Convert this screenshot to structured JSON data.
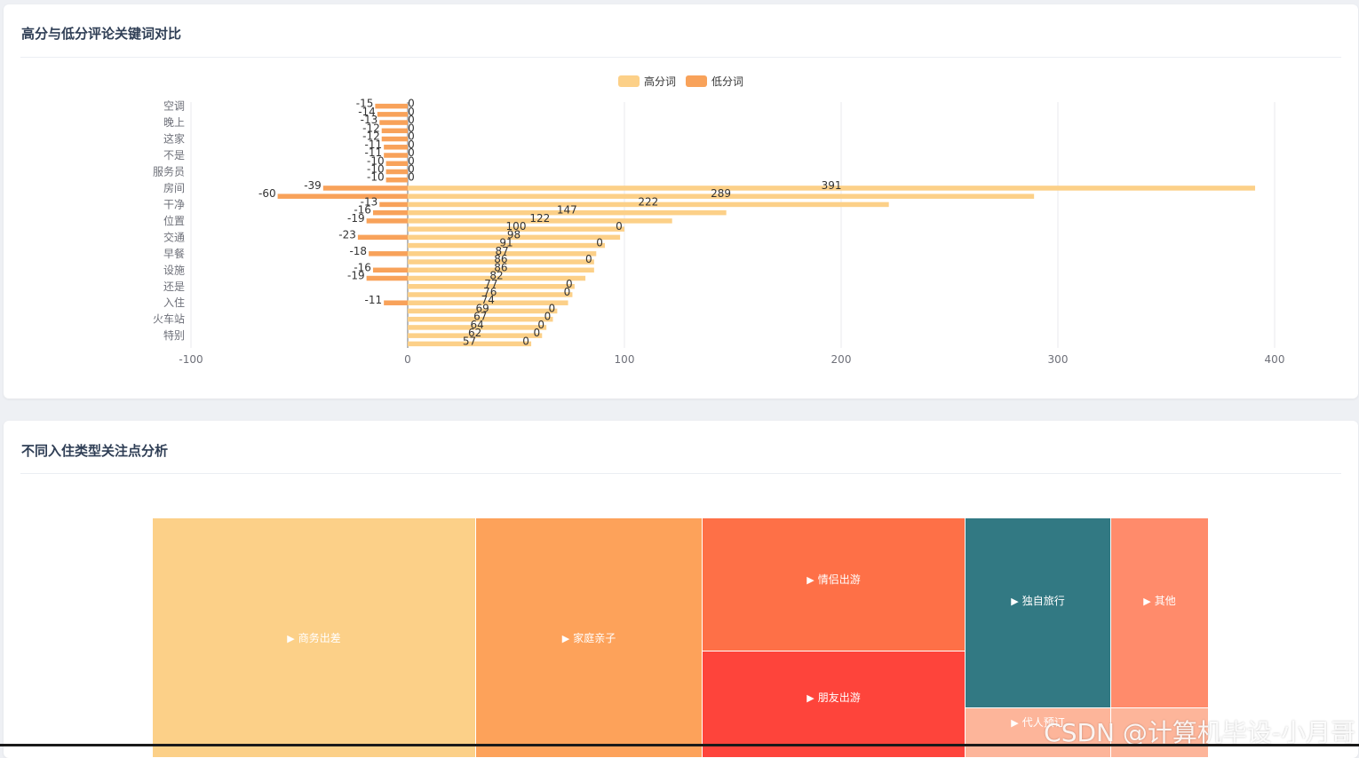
{
  "card1": {
    "title": "高分与低分评论关键词对比"
  },
  "card2": {
    "title": "不同入住类型关注点分析"
  },
  "chart_data": [
    {
      "type": "bar",
      "orientation": "horizontal",
      "title": "高分与低分评论关键词对比",
      "legend": [
        {
          "name": "高分词",
          "color": "#fcd088"
        },
        {
          "name": "低分词",
          "color": "#f8a25a"
        }
      ],
      "legend_position": "top-center",
      "xlim": [
        -100,
        400
      ],
      "xticks": [
        "-100",
        "0",
        "100",
        "200",
        "300",
        "400"
      ],
      "visible_category_labels": [
        "空调",
        "晚上",
        "这家",
        "不是",
        "服务员",
        "房间",
        "干净",
        "位置",
        "交通",
        "早餐",
        "设施",
        "还是",
        "入住",
        "火车站",
        "特别"
      ],
      "categories": [
        "空调",
        "-",
        "晚上",
        "-",
        "这家",
        "-",
        "不是",
        "-",
        "服务员",
        "-",
        "房间",
        "-",
        "干净",
        "-",
        "位置",
        "-",
        "交通",
        "-",
        "早餐",
        "-",
        "设施",
        "-",
        "还是",
        "-",
        "入住",
        "-",
        "火车站",
        "-",
        "特别",
        "-"
      ],
      "series": [
        {
          "name": "低分词",
          "values": [
            -15,
            -14,
            -13,
            -12,
            -12,
            -11,
            -11,
            -10,
            -10,
            -10,
            -39,
            -60,
            -13,
            -16,
            -19,
            0,
            -23,
            0,
            -18,
            0,
            -16,
            -19,
            0,
            0,
            -11,
            0,
            0,
            0,
            0,
            0
          ],
          "labels": [
            "-15",
            "-14",
            "-13",
            "-12",
            "-12",
            "-11",
            "-11",
            "-10",
            "-10",
            "-10",
            "-39",
            "-60",
            "-13",
            "-16",
            "-19",
            "",
            "-23",
            "",
            "-18",
            "",
            "-16",
            "-19",
            "",
            "",
            "-11",
            "",
            "",
            "",
            "",
            ""
          ]
        },
        {
          "name": "高分词",
          "values": [
            0,
            0,
            0,
            0,
            0,
            0,
            0,
            0,
            0,
            0,
            391,
            289,
            222,
            147,
            122,
            100,
            98,
            91,
            87,
            86,
            86,
            82,
            77,
            76,
            74,
            69,
            67,
            64,
            62,
            57
          ],
          "labels": [
            "0",
            "0",
            "0",
            "0",
            "0",
            "0",
            "0",
            "0",
            "0",
            "0",
            "391",
            "289",
            "222",
            "147",
            "122",
            "100",
            "98",
            "91",
            "87",
            "86",
            "86",
            "82",
            "77",
            "76",
            "74",
            "69",
            "67",
            "64",
            "62",
            "57"
          ],
          "extra_zero_labels": [
            "",
            "",
            "",
            "",
            "",
            "",
            "",
            "",
            "",
            "",
            "",
            "",
            "",
            "",
            "",
            "0",
            "",
            "0",
            "",
            "0",
            "",
            "",
            "0",
            "0",
            "",
            "0",
            "0",
            "0",
            "0",
            "0"
          ]
        }
      ]
    },
    {
      "type": "treemap",
      "title": "不同入住类型关注点分析",
      "nodes": [
        {
          "name": "商务出差",
          "color": "#fcd088"
        },
        {
          "name": "家庭亲子",
          "color": "#fda25a"
        },
        {
          "name": "情侣出游",
          "color": "#fe7047"
        },
        {
          "name": "朋友出游",
          "color": "#fe443b"
        },
        {
          "name": "独自旅行",
          "color": "#327983"
        },
        {
          "name": "其他",
          "color": "#ff8b6b"
        },
        {
          "name": "代人预订",
          "color": "#fdb59a"
        },
        {
          "name": "",
          "color": "#fdb59a"
        }
      ]
    }
  ],
  "watermark": "CSDN @计算机毕设-小月哥"
}
